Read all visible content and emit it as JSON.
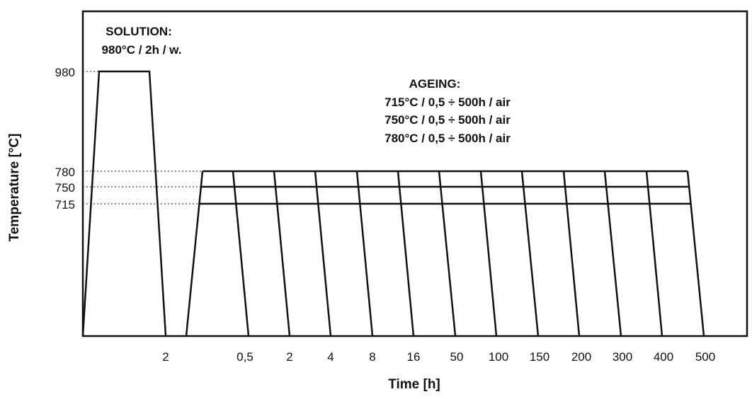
{
  "axes": {
    "x_title": "Time [h]",
    "y_title": "Temperature [°C]"
  },
  "solution": {
    "title": "SOLUTION:",
    "condition": "980°C / 2h / w.",
    "temperature_label": "980",
    "time_label": "2"
  },
  "ageing": {
    "title": "AGEING:",
    "conditions": [
      "715°C / 0,5 ÷ 500h / air",
      "750°C / 0,5 ÷ 500h / air",
      "780°C / 0,5 ÷ 500h / air"
    ],
    "temperature_labels": [
      "780",
      "750",
      "715"
    ],
    "time_labels": [
      "0,5",
      "2",
      "4",
      "8",
      "16",
      "50",
      "100",
      "150",
      "200",
      "300",
      "400",
      "500"
    ]
  }
}
